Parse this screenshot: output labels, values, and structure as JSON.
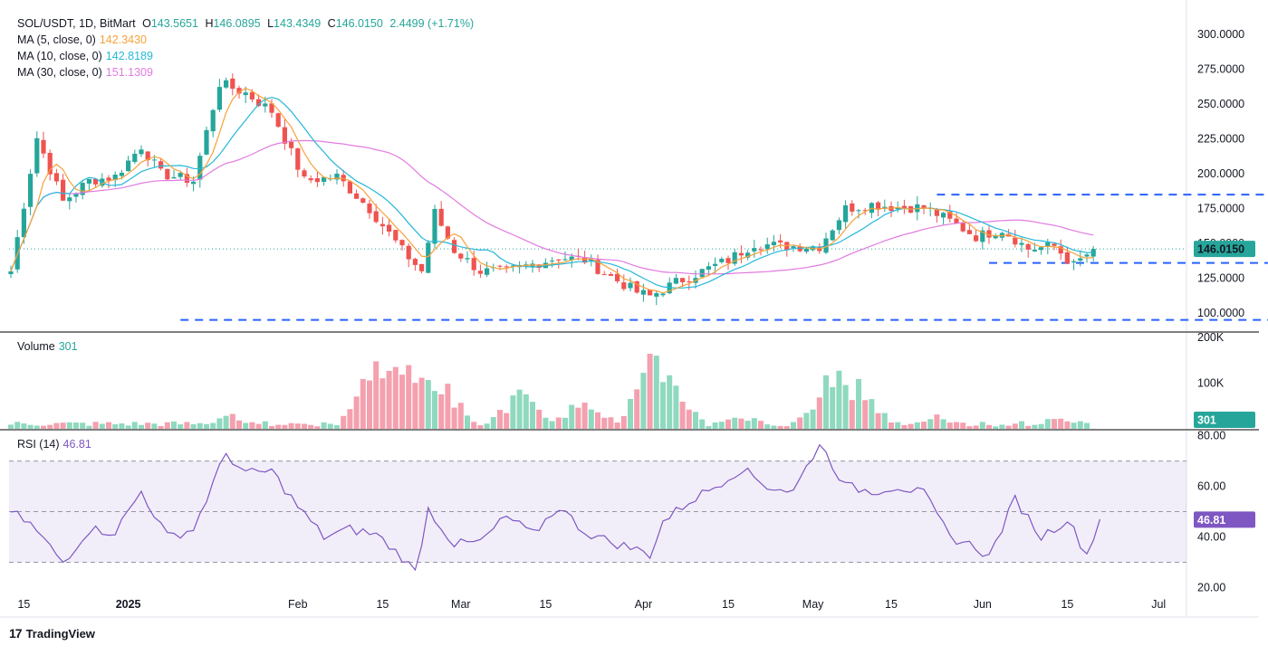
{
  "header": {
    "symbol": "SOL/USDT, 1D, BitMart",
    "open_label": "O",
    "open": "143.5651",
    "high_label": "H",
    "high": "146.0895",
    "low_label": "L",
    "low": "143.4349",
    "close_label": "C",
    "close": "146.0150",
    "change": "2.4499 (+1.71%)"
  },
  "indicators": {
    "ma5": {
      "label": "MA (5, close, 0)",
      "value": "142.3430",
      "color": "#f7a13b"
    },
    "ma10": {
      "label": "MA (10, close, 0)",
      "value": "142.8189",
      "color": "#26b7d9"
    },
    "ma30": {
      "label": "MA (30, close, 0)",
      "value": "151.1309",
      "color": "#e27ae0"
    },
    "volume": {
      "label": "Volume",
      "value": "301"
    },
    "rsi": {
      "label": "RSI (14)",
      "value": "46.81",
      "color": "#7e57c2"
    }
  },
  "colors": {
    "up": "#26a69a",
    "down": "#ef5350",
    "up_light": "#8fd9bf",
    "down_light": "#f4a0ae",
    "level_line": "#2962ff",
    "price_line": "#26a69a"
  },
  "price_badge": "146.0150",
  "volume_badge": "301",
  "rsi_badge": "46.81",
  "brand": {
    "mark": "17",
    "name": "TradingView"
  },
  "chart_data": {
    "type": "candlestick",
    "price_axis": {
      "ticks": [
        "300.0000",
        "275.0000",
        "250.0000",
        "225.0000",
        "200.0000",
        "175.0000",
        "150.0000",
        "125.0000",
        "100.0000"
      ],
      "range": [
        87,
        317
      ]
    },
    "volume_axis": {
      "ticks": [
        "200K",
        "100K"
      ],
      "range": [
        0,
        210000
      ]
    },
    "rsi_axis": {
      "ticks": [
        "80.00",
        "60.00",
        "40.00",
        "20.00"
      ],
      "range": [
        18,
        82
      ],
      "bands": [
        30,
        50,
        70
      ]
    },
    "x_labels": [
      "15",
      "2025",
      "Feb",
      "15",
      "Mar",
      "15",
      "Apr",
      "15",
      "May",
      "15",
      "Jun",
      "15",
      "Jul"
    ],
    "levels": [
      {
        "value": 185,
        "from_day": 142,
        "to_day": 202
      },
      {
        "value": 136,
        "from_day": 150,
        "to_day": 202
      },
      {
        "value": 95,
        "from_day": 26,
        "to_day": 202
      }
    ],
    "price_keyframes": [
      [
        0,
        130
      ],
      [
        4,
        226
      ],
      [
        8,
        180
      ],
      [
        12,
        195
      ],
      [
        16,
        198
      ],
      [
        20,
        220
      ],
      [
        23,
        200
      ],
      [
        28,
        195
      ],
      [
        32,
        265
      ],
      [
        36,
        258
      ],
      [
        40,
        245
      ],
      [
        45,
        195
      ],
      [
        50,
        198
      ],
      [
        55,
        175
      ],
      [
        60,
        145
      ],
      [
        63,
        130
      ],
      [
        65,
        172
      ],
      [
        68,
        145
      ],
      [
        72,
        130
      ],
      [
        76,
        130
      ],
      [
        80,
        135
      ],
      [
        84,
        140
      ],
      [
        88,
        138
      ],
      [
        92,
        126
      ],
      [
        96,
        115
      ],
      [
        98,
        112
      ],
      [
        102,
        122
      ],
      [
        106,
        130
      ],
      [
        110,
        138
      ],
      [
        114,
        150
      ],
      [
        118,
        148
      ],
      [
        124,
        148
      ],
      [
        128,
        175
      ],
      [
        132,
        178
      ],
      [
        136,
        176
      ],
      [
        140,
        176
      ],
      [
        144,
        166
      ],
      [
        148,
        155
      ],
      [
        152,
        160
      ],
      [
        156,
        146
      ],
      [
        160,
        148
      ],
      [
        163,
        134
      ],
      [
        166,
        146
      ]
    ],
    "volume_spikes": [
      [
        34,
        32000
      ],
      [
        56,
        180000
      ],
      [
        59,
        130000
      ],
      [
        61,
        200000
      ],
      [
        64,
        120000
      ],
      [
        66,
        110000
      ],
      [
        78,
        85000
      ],
      [
        88,
        80000
      ],
      [
        99,
        180000
      ],
      [
        101,
        115000
      ],
      [
        112,
        35000
      ],
      [
        126,
        140000
      ],
      [
        130,
        105000
      ],
      [
        142,
        30000
      ],
      [
        160,
        25000
      ]
    ],
    "rsi_keyframes": [
      [
        0,
        50
      ],
      [
        3,
        45
      ],
      [
        8,
        30
      ],
      [
        12,
        43
      ],
      [
        16,
        42
      ],
      [
        20,
        58
      ],
      [
        24,
        40
      ],
      [
        28,
        43
      ],
      [
        33,
        73
      ],
      [
        36,
        65
      ],
      [
        40,
        66
      ],
      [
        44,
        52
      ],
      [
        48,
        40
      ],
      [
        52,
        43
      ],
      [
        56,
        41
      ],
      [
        60,
        32
      ],
      [
        62,
        26
      ],
      [
        64,
        51
      ],
      [
        68,
        37
      ],
      [
        72,
        38
      ],
      [
        76,
        48
      ],
      [
        80,
        41
      ],
      [
        84,
        52
      ],
      [
        88,
        42
      ],
      [
        92,
        38
      ],
      [
        96,
        35
      ],
      [
        98,
        33
      ],
      [
        100,
        46
      ],
      [
        104,
        54
      ],
      [
        108,
        60
      ],
      [
        112,
        67
      ],
      [
        116,
        60
      ],
      [
        120,
        58
      ],
      [
        124,
        77
      ],
      [
        128,
        60
      ],
      [
        132,
        58
      ],
      [
        136,
        60
      ],
      [
        140,
        57
      ],
      [
        144,
        40
      ],
      [
        148,
        36
      ],
      [
        150,
        32
      ],
      [
        154,
        55
      ],
      [
        158,
        40
      ],
      [
        162,
        47
      ],
      [
        165,
        33
      ],
      [
        167,
        47
      ]
    ]
  }
}
